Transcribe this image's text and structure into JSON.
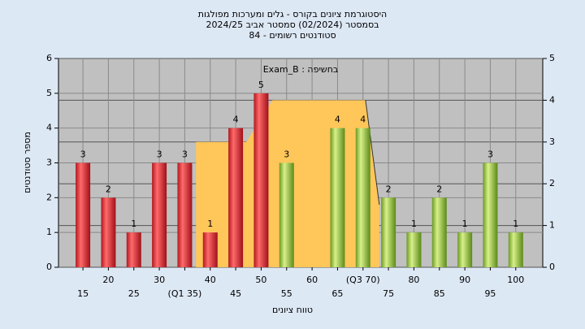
{
  "chart_data": {
    "type": "bar",
    "title": [
      "היסטוגרמת ציונים בקורס - גלים ומערכות מפולגות",
      "בסמסטר  (02/2024)  סמסטר אביב 2024/25",
      "סטודנטים רשומים - 84"
    ],
    "annotation": "Exam_B : בחשיפה",
    "x_label": "טווח ציונים",
    "y_label": "מספר סטודנטים",
    "x": [
      15,
      20,
      25,
      30,
      35,
      40,
      45,
      50,
      55,
      60,
      65,
      70,
      75,
      80,
      85,
      90,
      95,
      100
    ],
    "values": [
      3,
      2,
      1,
      3,
      3,
      1,
      4,
      5,
      3,
      null,
      4,
      4,
      2,
      1,
      2,
      1,
      3,
      1
    ],
    "colors": [
      "#e8323a",
      "#e8323a",
      "#e8323a",
      "#e8323a",
      "#e8323a",
      "#e8323a",
      "#e8323a",
      "#e8323a",
      "#8fc43c",
      "#8fc43c",
      "#8fc43c",
      "#8fc43c",
      "#8fc43c",
      "#8fc43c",
      "#8fc43c",
      "#8fc43c",
      "#8fc43c",
      "#8fc43c"
    ],
    "xlim": [
      10.2,
      105.3
    ],
    "xticks": [
      15,
      20,
      25,
      30,
      {
        "value": 35,
        "label": "(Q1 35)"
      },
      40,
      45,
      50,
      55,
      60,
      65,
      {
        "value": 70,
        "label": "(Q3 70)"
      },
      75,
      80,
      85,
      90,
      95,
      100
    ],
    "ylim": [
      0,
      6
    ],
    "yticks": [
      0,
      1,
      2,
      3,
      4,
      5,
      6
    ],
    "y2lim": [
      0,
      5
    ],
    "y2ticks": [
      0,
      1,
      2,
      3,
      4,
      5
    ],
    "area": {
      "axis": "y2",
      "color": "#ffc65a",
      "x": [
        37.2,
        37.2,
        47.1,
        52.2,
        70.5,
        73.2
      ],
      "values": [
        0,
        3,
        3,
        4,
        4,
        1.5
      ]
    },
    "grid": true
  }
}
